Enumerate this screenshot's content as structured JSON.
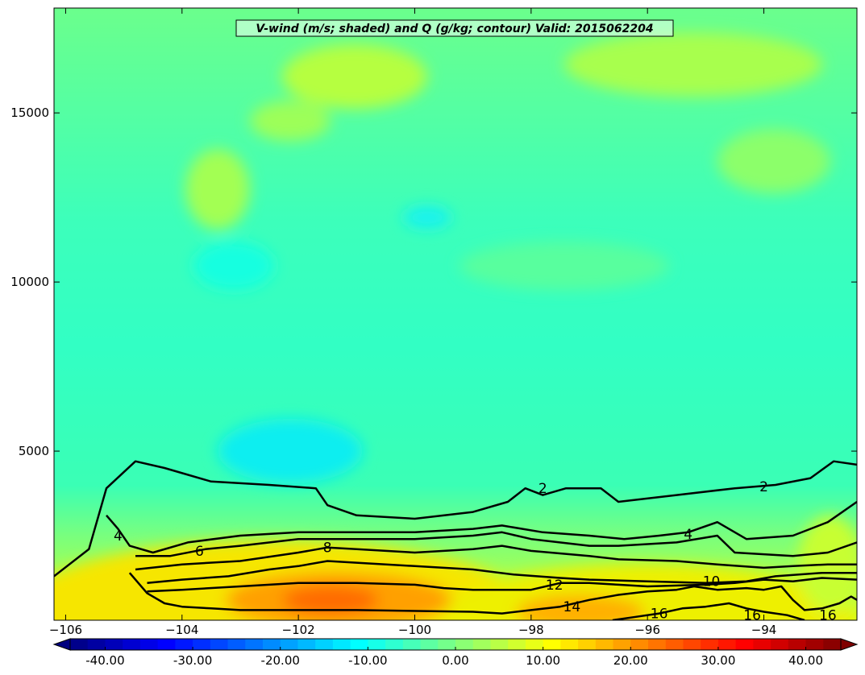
{
  "chart_data": {
    "type": "contour",
    "title": "V-wind (m/s; shaded) and Q (g/kg; contour) Valid: 2015062204",
    "xlabel": "",
    "ylabel": "",
    "xlim": [
      -106.2,
      -92.4
    ],
    "ylim": [
      0,
      18100
    ],
    "x_ticks": [
      -106,
      -104,
      -102,
      -100,
      -98,
      -96,
      -94
    ],
    "x_tick_labels": [
      "−106",
      "−104",
      "−102",
      "−100",
      "−98",
      "−96",
      "−94"
    ],
    "y_ticks": [
      5000,
      10000,
      15000
    ],
    "y_tick_labels": [
      "5000",
      "10000",
      "15000"
    ],
    "shaded": {
      "variable": "V-wind",
      "units": "m/s",
      "colorbar_ticks": [
        -40,
        -30,
        -20,
        -10,
        0,
        10,
        20,
        30,
        40
      ],
      "colorbar_tick_labels": [
        "-40.00",
        "-30.00",
        "-20.00",
        "-10.00",
        "0.00",
        "10.00",
        "20.00",
        "30.00",
        "40.00"
      ],
      "colorbar_range": [
        -44,
        44
      ],
      "colormap": "jet",
      "regions": [
        {
          "desc": "upper troposphere background",
          "value": -2
        },
        {
          "desc": "mid-level minimum near x=-101.6, y=4800",
          "value": -10
        },
        {
          "desc": "low-level jet core near x=-101.2, y=600",
          "value": 27
        },
        {
          "desc": "low-level maximum near x=-96.2, y=400",
          "value": 22
        }
      ]
    },
    "contours": {
      "variable": "Q",
      "units": "g/kg",
      "color": "#000000",
      "levels": [
        2,
        4,
        6,
        8,
        10,
        12,
        14,
        16
      ],
      "lines": [
        {
          "level": 2,
          "points": [
            [
              -106.2,
              1300
            ],
            [
              -105.6,
              2100
            ],
            [
              -105.3,
              3900
            ],
            [
              -104.8,
              4700
            ],
            [
              -104.3,
              4500
            ],
            [
              -103.5,
              4100
            ],
            [
              -102.5,
              4000
            ],
            [
              -101.7,
              3900
            ],
            [
              -101.5,
              3400
            ],
            [
              -101.0,
              3100
            ],
            [
              -100.0,
              3000
            ],
            [
              -99.0,
              3200
            ],
            [
              -98.4,
              3500
            ],
            [
              -98.1,
              3900
            ],
            [
              -97.8,
              3700
            ],
            [
              -97.4,
              3900
            ],
            [
              -96.8,
              3900
            ],
            [
              -96.5,
              3500
            ],
            [
              -95.5,
              3700
            ],
            [
              -94.5,
              3900
            ],
            [
              -93.8,
              4000
            ],
            [
              -93.2,
              4200
            ],
            [
              -92.8,
              4700
            ],
            [
              -92.4,
              4600
            ]
          ]
        },
        {
          "level": 4,
          "points": [
            [
              -105.3,
              3100
            ],
            [
              -105.1,
              2700
            ],
            [
              -104.9,
              2200
            ],
            [
              -104.5,
              2000
            ],
            [
              -103.9,
              2300
            ],
            [
              -103.0,
              2500
            ],
            [
              -102.0,
              2600
            ],
            [
              -101.0,
              2600
            ],
            [
              -100.0,
              2600
            ],
            [
              -99.0,
              2700
            ],
            [
              -98.5,
              2800
            ],
            [
              -97.8,
              2600
            ],
            [
              -97.0,
              2500
            ],
            [
              -96.4,
              2400
            ],
            [
              -95.8,
              2500
            ],
            [
              -95.3,
              2600
            ],
            [
              -94.8,
              2900
            ],
            [
              -94.3,
              2400
            ],
            [
              -93.5,
              2500
            ],
            [
              -92.9,
              2900
            ],
            [
              -92.4,
              3500
            ]
          ]
        },
        {
          "level": 6,
          "points": [
            [
              -104.8,
              1900
            ],
            [
              -104.2,
              1900
            ],
            [
              -103.6,
              2100
            ],
            [
              -103.0,
              2200
            ],
            [
              -102.0,
              2400
            ],
            [
              -101.0,
              2400
            ],
            [
              -100.0,
              2400
            ],
            [
              -99.0,
              2500
            ],
            [
              -98.5,
              2600
            ],
            [
              -98.0,
              2400
            ],
            [
              -97.0,
              2200
            ],
            [
              -96.5,
              2200
            ],
            [
              -95.5,
              2300
            ],
            [
              -94.8,
              2500
            ],
            [
              -94.5,
              2000
            ],
            [
              -93.5,
              1900
            ],
            [
              -92.9,
              2000
            ],
            [
              -92.4,
              2300
            ]
          ]
        },
        {
          "level": 8,
          "points": [
            [
              -104.8,
              1500
            ],
            [
              -104.0,
              1650
            ],
            [
              -103.0,
              1750
            ],
            [
              -102.0,
              2000
            ],
            [
              -101.5,
              2150
            ],
            [
              -101.0,
              2100
            ],
            [
              -100.0,
              2000
            ],
            [
              -99.0,
              2100
            ],
            [
              -98.5,
              2200
            ],
            [
              -98.0,
              2050
            ],
            [
              -97.0,
              1900
            ],
            [
              -96.5,
              1800
            ],
            [
              -95.5,
              1750
            ],
            [
              -94.8,
              1650
            ],
            [
              -94.0,
              1550
            ],
            [
              -93.5,
              1600
            ],
            [
              -92.9,
              1650
            ],
            [
              -92.4,
              1650
            ]
          ]
        },
        {
          "level": 10,
          "points": [
            [
              -104.6,
              1100
            ],
            [
              -104.0,
              1200
            ],
            [
              -103.2,
              1300
            ],
            [
              -102.5,
              1500
            ],
            [
              -102.0,
              1600
            ],
            [
              -101.5,
              1750
            ],
            [
              -101.0,
              1700
            ],
            [
              -100.0,
              1600
            ],
            [
              -99.5,
              1550
            ],
            [
              -99.0,
              1500
            ],
            [
              -98.3,
              1350
            ],
            [
              -97.5,
              1250
            ],
            [
              -97.0,
              1200
            ],
            [
              -96.0,
              1150
            ],
            [
              -95.0,
              1100
            ],
            [
              -94.3,
              1150
            ],
            [
              -93.8,
              1300
            ],
            [
              -93.0,
              1400
            ],
            [
              -92.4,
              1400
            ]
          ]
        },
        {
          "level": 12,
          "points": [
            [
              -104.6,
              850
            ],
            [
              -104.0,
              900
            ],
            [
              -103.0,
              1000
            ],
            [
              -102.0,
              1100
            ],
            [
              -101.0,
              1100
            ],
            [
              -100.0,
              1050
            ],
            [
              -99.5,
              950
            ],
            [
              -99.0,
              900
            ],
            [
              -98.0,
              900
            ],
            [
              -97.5,
              1100
            ],
            [
              -97.0,
              1100
            ],
            [
              -96.5,
              1050
            ],
            [
              -96.0,
              1000
            ],
            [
              -95.0,
              1050
            ],
            [
              -94.5,
              1100
            ],
            [
              -94.0,
              1200
            ],
            [
              -93.5,
              1150
            ],
            [
              -93.0,
              1250
            ],
            [
              -92.4,
              1200
            ]
          ]
        },
        {
          "level": 14,
          "points": [
            [
              -104.9,
              1400
            ],
            [
              -104.6,
              800
            ],
            [
              -104.3,
              500
            ],
            [
              -104.0,
              400
            ],
            [
              -103.5,
              350
            ],
            [
              -103.0,
              300
            ],
            [
              -101.0,
              300
            ],
            [
              -99.0,
              250
            ],
            [
              -98.5,
              200
            ],
            [
              -98.0,
              300
            ],
            [
              -97.5,
              400
            ],
            [
              -97.0,
              600
            ],
            [
              -96.5,
              750
            ],
            [
              -96.0,
              850
            ],
            [
              -95.5,
              900
            ],
            [
              -95.2,
              1000
            ],
            [
              -94.8,
              900
            ],
            [
              -94.3,
              950
            ],
            [
              -94.0,
              900
            ],
            [
              -93.7,
              1000
            ],
            [
              -93.5,
              600
            ],
            [
              -93.3,
              300
            ],
            [
              -93.0,
              350
            ],
            [
              -92.7,
              500
            ],
            [
              -92.5,
              700
            ],
            [
              -92.4,
              600
            ]
          ]
        },
        {
          "level": 16,
          "points": [
            [
              -96.6,
              0
            ],
            [
              -96.2,
              100
            ],
            [
              -95.8,
              200
            ],
            [
              -95.4,
              350
            ],
            [
              -95.0,
              400
            ],
            [
              -94.6,
              500
            ],
            [
              -94.3,
              350
            ],
            [
              -94.0,
              250
            ],
            [
              -93.6,
              150
            ],
            [
              -93.3,
              0
            ]
          ]
        }
      ],
      "labels": [
        {
          "text": "2",
          "x": -97.8,
          "y": 3900
        },
        {
          "text": "2",
          "x": -94.0,
          "y": 3950
        },
        {
          "text": "4",
          "x": -105.1,
          "y": 2500
        },
        {
          "text": "4",
          "x": -95.3,
          "y": 2550
        },
        {
          "text": "6",
          "x": -103.7,
          "y": 2050
        },
        {
          "text": "8",
          "x": -101.5,
          "y": 2150
        },
        {
          "text": "10",
          "x": -94.9,
          "y": 1150
        },
        {
          "text": "12",
          "x": -97.6,
          "y": 1050
        },
        {
          "text": "14",
          "x": -97.3,
          "y": 400
        },
        {
          "text": "16",
          "x": -95.8,
          "y": 200
        },
        {
          "text": "16",
          "x": -94.2,
          "y": 150
        },
        {
          "text": "16",
          "x": -92.9,
          "y": 150
        }
      ]
    }
  }
}
